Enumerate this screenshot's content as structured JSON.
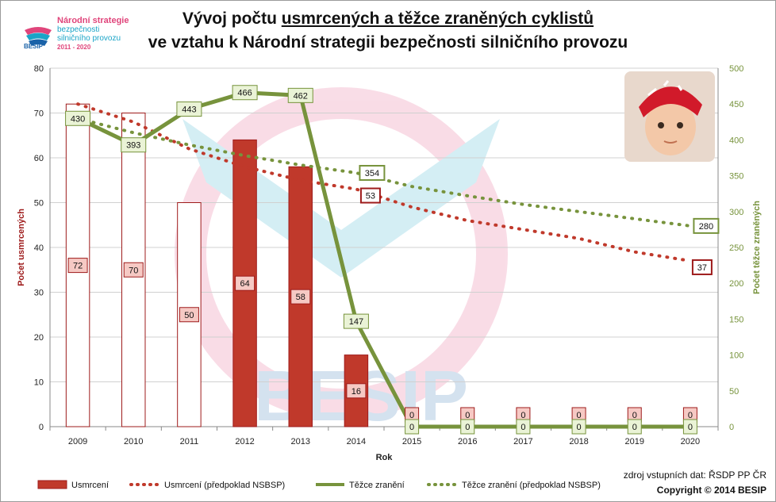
{
  "logo": {
    "line1": "Národní strategie",
    "line2": "bezpečnosti",
    "line3": "silničního provozu",
    "line4": "2011 - 2020",
    "brand": "BESIP"
  },
  "title": {
    "line1_prefix": "Vývoj počtu ",
    "line1_underlined": "usmrcených a těžce zraněných cyklistů",
    "line2": "ve vztahu k Národní strategii bezpečnosti silničního provozu"
  },
  "source": {
    "line1": "zdroj vstupních dat: ŘSDP PP ČR",
    "line2": "Copyright © 2014 BESIP"
  },
  "colors": {
    "killed_dark": "#9e1b1b",
    "killed_light": "#c0392b",
    "killed_label_fill": "#f6c9c4",
    "injured": "#77933c",
    "injured_label_fill": "#eaf3d6",
    "grid": "#d0d0d0"
  },
  "chart_data": {
    "type": "bar",
    "categories": [
      "2009",
      "2010",
      "2011",
      "2012",
      "2013",
      "2014",
      "2015",
      "2016",
      "2017",
      "2018",
      "2019",
      "2020"
    ],
    "xlabel": "Rok",
    "ylabel": "Počet usmrcených",
    "y2label": "Počet těžce zraněných",
    "ylim": [
      0,
      80
    ],
    "y2lim": [
      0,
      500
    ],
    "yticks": [
      0,
      10,
      20,
      30,
      40,
      50,
      60,
      70,
      80
    ],
    "y2ticks": [
      0,
      50,
      100,
      150,
      200,
      250,
      300,
      350,
      400,
      450,
      500
    ],
    "grid": true,
    "legend_position": "bottom",
    "series": [
      {
        "name": "Usmrcení",
        "kind": "bar",
        "axis": "left",
        "values": [
          72,
          70,
          50,
          64,
          58,
          16,
          0,
          0,
          0,
          0,
          0,
          0
        ],
        "labels": [
          "72",
          "70",
          "50",
          "64",
          "58",
          "16",
          "0",
          "0",
          "0",
          "0",
          "0",
          "0"
        ],
        "style_by_category": [
          "outline",
          "outline",
          "outline",
          "filled",
          "filled",
          "filled",
          "filled",
          "filled",
          "filled",
          "filled",
          "filled",
          "filled"
        ]
      },
      {
        "name": "Usmrcení (předpoklad NSBSP)",
        "kind": "dotted-line",
        "axis": "left",
        "values": [
          72,
          68,
          62,
          58,
          55,
          53,
          49,
          46,
          44,
          42,
          39,
          37
        ],
        "labels": [
          "",
          "",
          "",
          "",
          "",
          "53",
          "",
          "",
          "",
          "",
          "",
          "37"
        ]
      },
      {
        "name": "Těžce zranění",
        "kind": "line",
        "axis": "right",
        "values": [
          430,
          393,
          443,
          466,
          462,
          147,
          0,
          0,
          0,
          0,
          0,
          0
        ],
        "labels": [
          "430",
          "393",
          "443",
          "466",
          "462",
          "147",
          "0",
          "0",
          "0",
          "0",
          "0",
          "0"
        ]
      },
      {
        "name": "Těžce zranění (předpoklad NSBSP)",
        "kind": "dotted-line",
        "axis": "right",
        "values": [
          430,
          410,
          393,
          378,
          365,
          354,
          335,
          322,
          310,
          300,
          290,
          280
        ],
        "labels": [
          "",
          "",
          "",
          "",
          "",
          "354",
          "",
          "",
          "",
          "",
          "",
          "280"
        ]
      }
    ]
  }
}
